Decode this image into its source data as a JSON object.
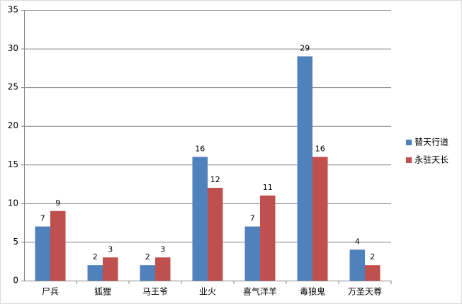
{
  "chart_data": {
    "type": "bar",
    "categories": [
      "尸兵",
      "狐狸",
      "马王爷",
      "业火",
      "喜气洋羊",
      "毒狼鬼",
      "万圣天尊"
    ],
    "series": [
      {
        "name": "替天行道",
        "color": "#4f81bd",
        "values": [
          7,
          2,
          2,
          16,
          7,
          29,
          4
        ]
      },
      {
        "name": "永驻天长",
        "color": "#c0504d",
        "values": [
          9,
          3,
          3,
          12,
          11,
          16,
          2
        ]
      }
    ],
    "ylim": [
      0,
      35
    ],
    "yticks": [
      0,
      5,
      10,
      15,
      20,
      25,
      30,
      35
    ],
    "grid": true,
    "legend": "right",
    "data_labels": true
  }
}
